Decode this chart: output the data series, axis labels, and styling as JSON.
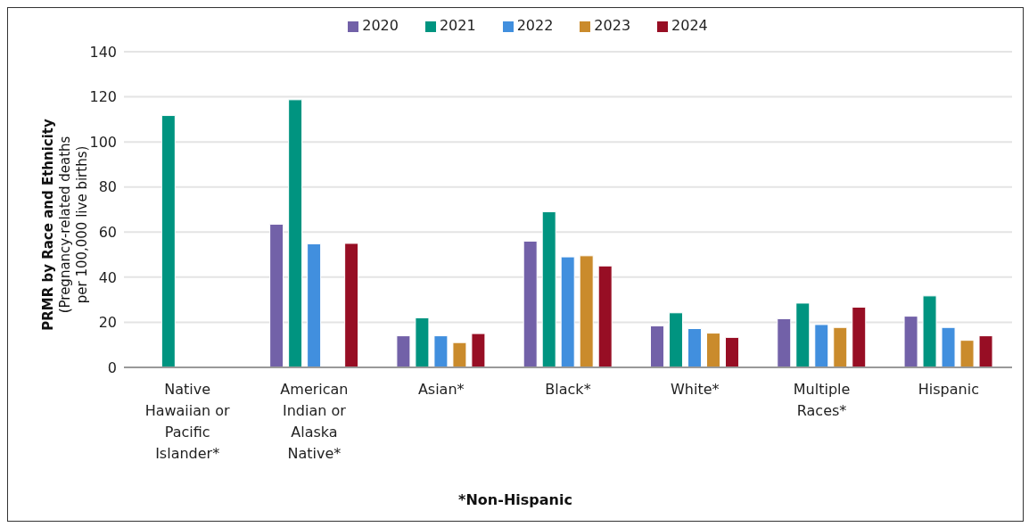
{
  "chart_data": {
    "type": "bar",
    "ylabel": "PRMR by Race and Ethnicity (Pregnancy-related deaths per 100,000 live births)",
    "categories": [
      "Native Hawaiian or Pacific Islander*",
      "American Indian or Alaska Native*",
      "Asian*",
      "Black*",
      "White*",
      "Multiple Races*",
      "Hispanic"
    ],
    "series": [
      {
        "name": "2020",
        "color": "#7261a8",
        "values": [
          null,
          63.5,
          14,
          56,
          18.4,
          21.6,
          22.7
        ]
      },
      {
        "name": "2021",
        "color": "#009480",
        "values": [
          111.7,
          118.7,
          22,
          69,
          24.2,
          28.5,
          31.7
        ]
      },
      {
        "name": "2022",
        "color": "#418fde",
        "values": [
          null,
          54.8,
          14,
          49,
          17.2,
          19,
          17.7
        ]
      },
      {
        "name": "2023",
        "color": "#ca8b2c",
        "values": [
          null,
          null,
          11,
          49.5,
          15.2,
          17.7,
          12
        ]
      },
      {
        "name": "2024",
        "color": "#970e24",
        "values": [
          null,
          55,
          15,
          45,
          13.3,
          26.7,
          14
        ]
      }
    ],
    "ylim": [
      0,
      140
    ],
    "yticks": [
      0,
      20,
      40,
      60,
      80,
      100,
      120,
      140
    ],
    "grid": "y",
    "legend": "top",
    "annotations": [
      "*Non-Hispanic"
    ]
  }
}
